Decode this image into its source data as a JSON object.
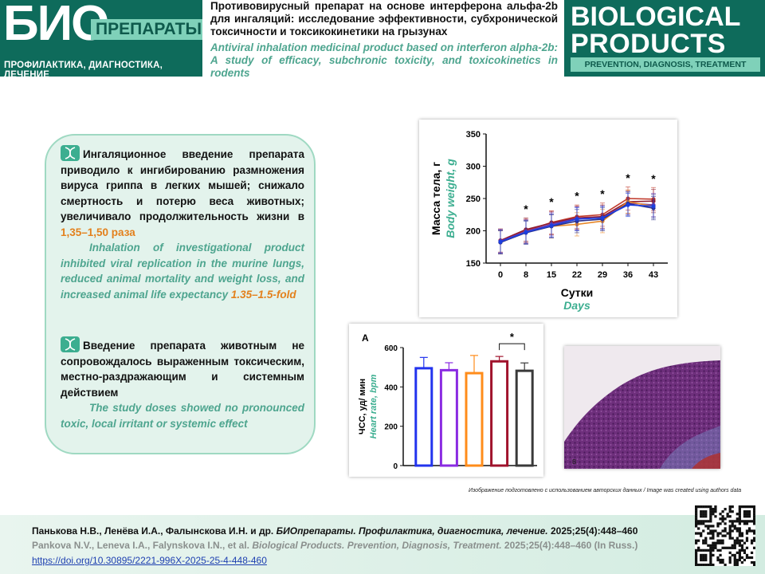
{
  "header": {
    "logo_left_big": "БИО",
    "logo_left_tag": "ПРЕПАРАТЫ",
    "logo_left_sub": "ПРОФИЛАКТИКА, ДИАГНОСТИКА, ЛЕЧЕНИЕ",
    "title_ru": "Противовирусный препарат на основе интерферона альфа-2b для ингаляций: исследование эффективности, субхронической токсичности и токсикокинетики на грызунах",
    "title_en": "Antiviral inhalation medicinal product based on interferon alpha-2b: A study of efficacy, subchronic toxicity, and toxicokinetics in rodents",
    "logo_right_line1": "BIOLOGICAL",
    "logo_right_line2": "PRODUCTS",
    "logo_right_sub": "PREVENTION, DIAGNOSIS, TREATMENT",
    "brand_color": "#0e6b5b",
    "accent_color": "#7fd1b9"
  },
  "summary": {
    "point1_ru": "Ингаляционное введение препарата приводило к ингибированию размножения вируса гриппа в легких мышей; снижало смертность и потерю веса животных; увеличивало продолжительность жизни в",
    "point1_ru_hl": "1,35–1,50 раза",
    "point1_en": "Inhalation of investigational product inhibited viral replication in the murine lungs, reduced animal mortality and weight loss, and increased animal life expectancy",
    "point1_en_hl": "1.35–1.5-fold",
    "point2_ru": "Введение препарата животным не сопровождалось выраженным токсическим, местно-раздражающим и системным действием",
    "point2_en": "The study doses showed no pronounced toxic, local irritant or systemic effect",
    "icon": "dna-icon",
    "highlight_color": "#e3801c"
  },
  "chart_data": [
    {
      "type": "line",
      "ylabel_ru": "Масса тела, г",
      "ylabel_en": "Body weight, g",
      "xlabel_ru": "Сутки",
      "xlabel_en": "Days",
      "x": [
        0,
        8,
        15,
        22,
        29,
        36,
        43
      ],
      "ylim": [
        150,
        350
      ],
      "yticks": [
        150,
        200,
        250,
        300,
        350
      ],
      "significance": [
        "",
        "*",
        "*",
        "*",
        "*",
        "*",
        "*"
      ],
      "series": [
        {
          "color": "#c0392b",
          "values": [
            183,
            200,
            213,
            222,
            225,
            250,
            249
          ]
        },
        {
          "color": "#8e1b2f",
          "values": [
            185,
            202,
            212,
            220,
            222,
            245,
            246
          ]
        },
        {
          "color": "#6a3ab0",
          "values": [
            184,
            199,
            210,
            219,
            220,
            243,
            240
          ]
        },
        {
          "color": "#e8892a",
          "values": [
            182,
            198,
            207,
            210,
            215,
            245,
            238
          ]
        },
        {
          "color": "#2b2f8a",
          "values": [
            182,
            197,
            207,
            215,
            218,
            242,
            235
          ]
        },
        {
          "color": "#1c3fe0",
          "values": [
            183,
            198,
            208,
            218,
            220,
            240,
            238
          ]
        }
      ],
      "error": 18
    },
    {
      "type": "bar",
      "panel_label": "A",
      "ylabel_ru": "ЧСС, уд/ мин",
      "ylabel_en": "Heart rate, bpm",
      "ylim": [
        0,
        600
      ],
      "yticks": [
        0,
        200,
        400,
        600
      ],
      "values": [
        495,
        485,
        470,
        530,
        482
      ],
      "errors": [
        55,
        38,
        90,
        25,
        40
      ],
      "colors": [
        "#2233ee",
        "#8a2be2",
        "#ff8c1a",
        "#a0132c",
        "#3a3a3a"
      ],
      "significance_label": "*"
    }
  ],
  "histology": {
    "panel_label": "B"
  },
  "credit": "Изображение подготовлено с использованием авторских данных / Image was created using authors data",
  "footer": {
    "ref_ru_authors": "Панькова Н.В., Ленёва И.А., Фалынскова И.Н. и др.",
    "ref_ru_journal": "БИОпрепараты. Профилактика, диагностика, лечение.",
    "ref_ru_tail": "2025;25(4):448–460",
    "ref_en_authors": "Pankova N.V., Leneva I.A., Falynskova I.N., et al.",
    "ref_en_journal": "Biological Products. Prevention, Diagnosis, Treatment.",
    "ref_en_tail": "2025;25(4):448–460 (In Russ.)",
    "doi": "https://doi.org/10.30895/2221-996X-2025-25-4-448-460"
  }
}
